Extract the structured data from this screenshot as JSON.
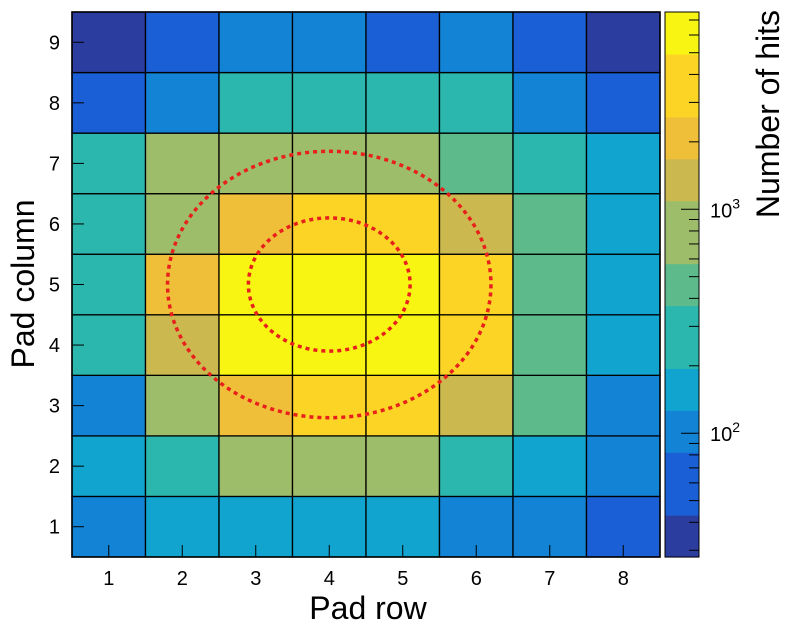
{
  "chart_data": {
    "type": "heatmap",
    "title": "",
    "xlabel": "Pad row",
    "ylabel": "Pad column",
    "zlabel": "Number of hits",
    "x": [
      1,
      2,
      3,
      4,
      5,
      6,
      7,
      8
    ],
    "y": [
      1,
      2,
      3,
      4,
      5,
      6,
      7,
      8,
      9
    ],
    "z_scale": "log",
    "z_range": [
      28,
      7600
    ],
    "z_ticks": [
      {
        "value": 100,
        "base": "10",
        "exp": "2"
      },
      {
        "value": 1000,
        "base": "10",
        "exp": "3"
      }
    ],
    "values": [
      [
        110,
        140,
        170,
        200,
        160,
        120,
        85,
        50
      ],
      [
        140,
        300,
        650,
        700,
        620,
        320,
        160,
        90
      ],
      [
        105,
        650,
        2700,
        4000,
        3300,
        1400,
        370,
        120
      ],
      [
        300,
        1600,
        5500,
        7200,
        6800,
        2900,
        550,
        190
      ],
      [
        300,
        1700,
        5900,
        7500,
        7000,
        2800,
        520,
        200
      ],
      [
        280,
        750,
        2200,
        3900,
        3700,
        1000,
        520,
        180
      ],
      [
        240,
        600,
        800,
        800,
        800,
        550,
        250,
        140
      ],
      [
        75,
        95,
        350,
        330,
        340,
        260,
        115,
        60
      ],
      [
        40,
        60,
        100,
        120,
        60,
        100,
        70,
        30
      ]
    ],
    "colormap": [
      "#2b3d9e",
      "#1a5fd6",
      "#1283d5",
      "#10a4cf",
      "#2cb7ae",
      "#5dbb8b",
      "#9dbd6a",
      "#cbb84f",
      "#f0bf39",
      "#fbd425",
      "#f8f512"
    ],
    "grid": true,
    "annotations": [
      {
        "type": "ellipse",
        "style": "dotted",
        "color": "#e8201c",
        "center": [
          4,
          5
        ],
        "radius_x": 1.1,
        "radius_y": 1.1
      },
      {
        "type": "ellipse",
        "style": "dotted",
        "color": "#e8201c",
        "center": [
          4,
          5
        ],
        "radius_x": 2.2,
        "radius_y": 2.2
      }
    ]
  }
}
